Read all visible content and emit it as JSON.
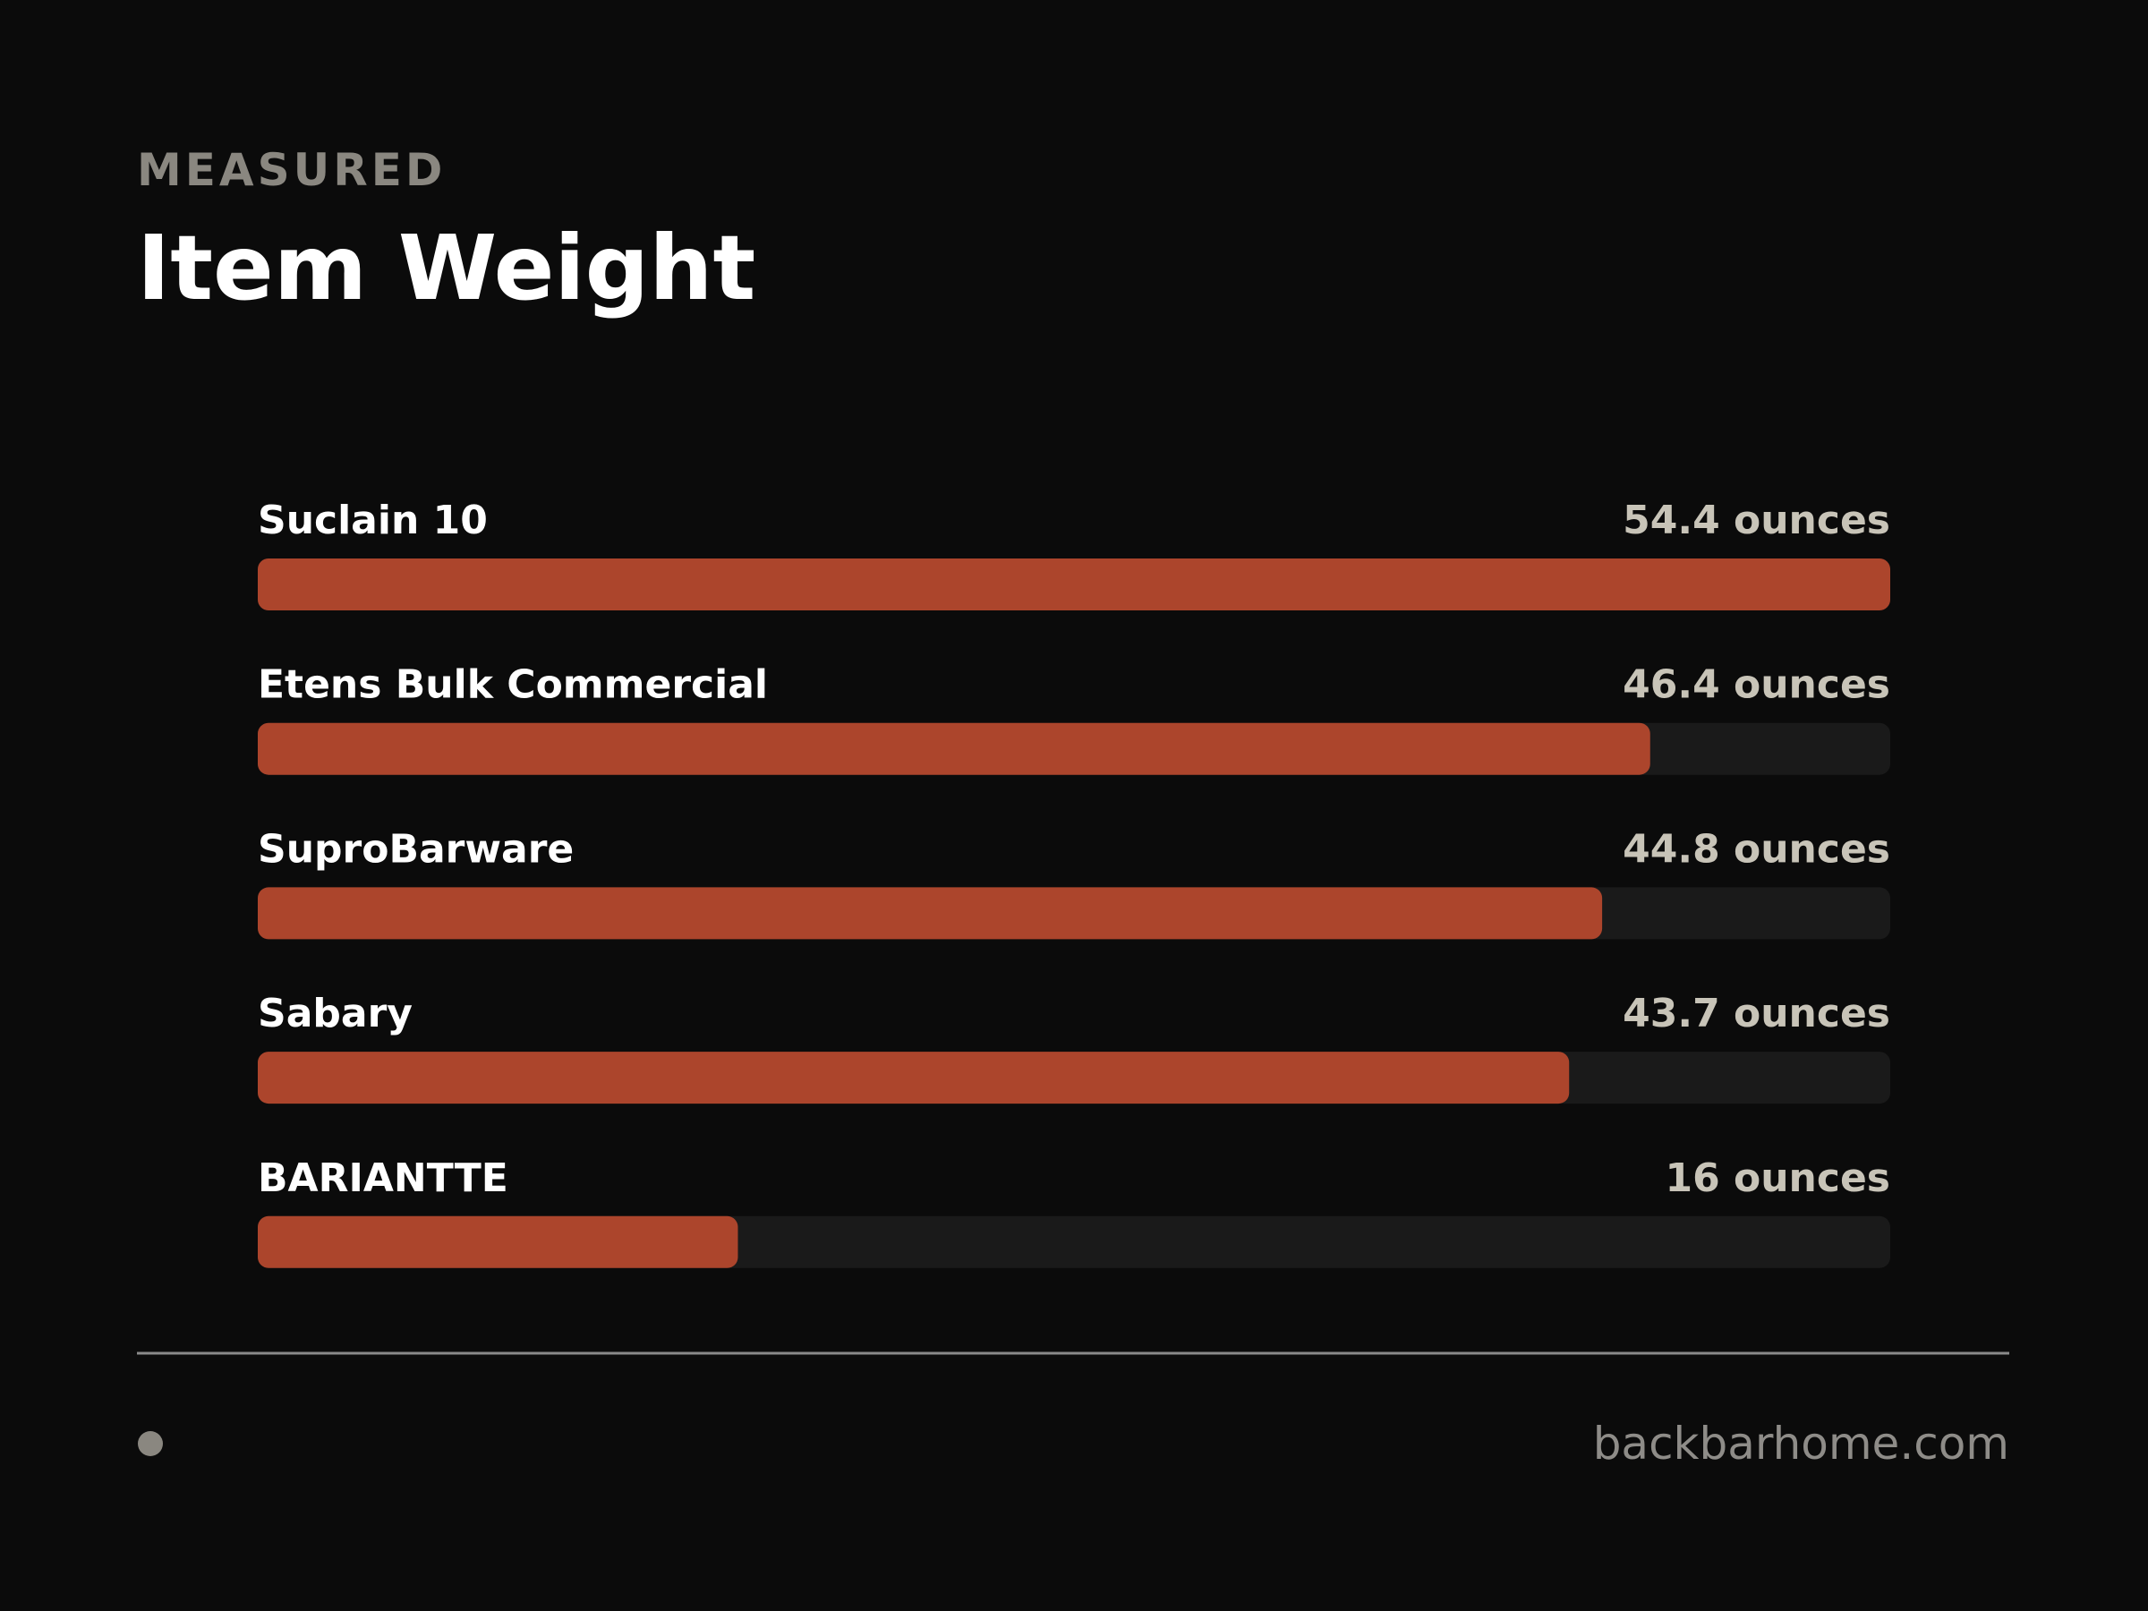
{
  "chart_data": {
    "type": "hbar",
    "kicker": "MEASURED",
    "title": "Item Weight",
    "categories": [
      "Suclain 10",
      "Etens Bulk Commercial",
      "SuproBarware",
      "Sabary",
      "BARIANTTE"
    ],
    "values": [
      54.4,
      46.4,
      44.8,
      43.7,
      16
    ],
    "value_labels": [
      "54.4 ounces",
      "46.4 ounces",
      "44.8 ounces",
      "43.7 ounces",
      "16 ounces"
    ],
    "color": "#ac452c",
    "xlim": [
      0,
      54.4
    ],
    "footer": "backbarhome.com"
  }
}
